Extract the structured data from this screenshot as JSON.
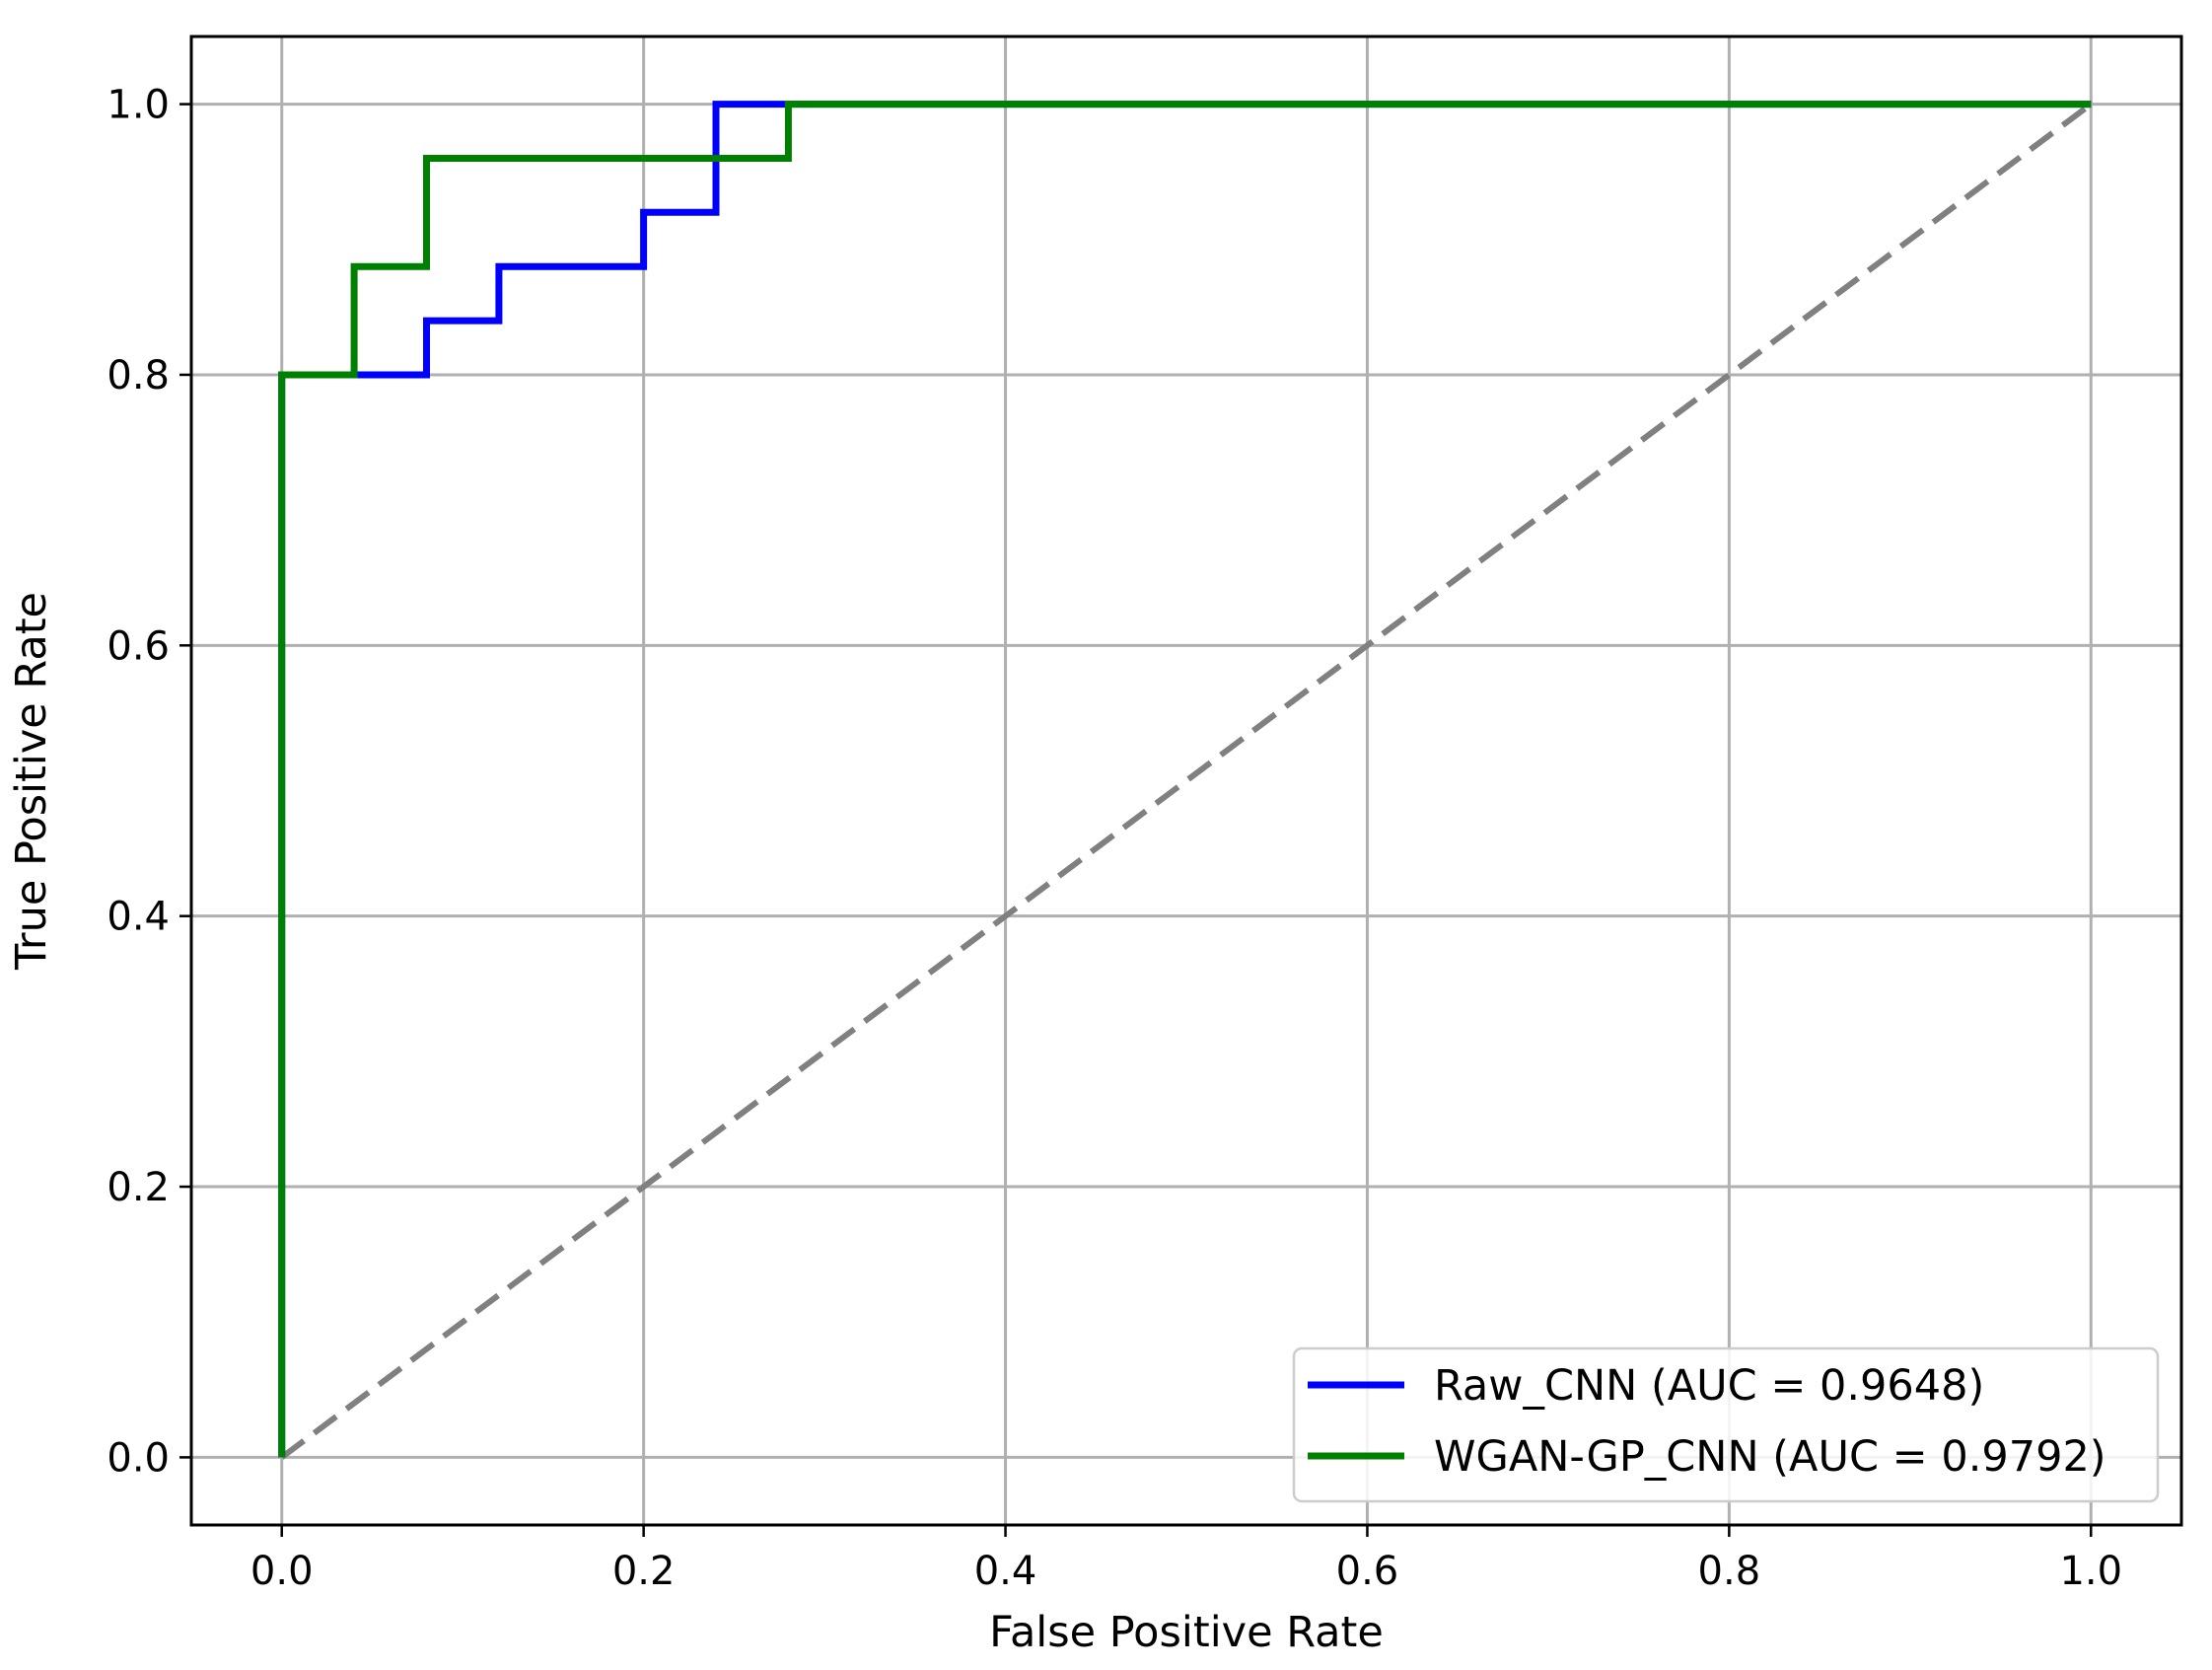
{
  "chart_data": {
    "type": "line",
    "title": "",
    "xlabel": "False Positive Rate",
    "ylabel": "True Positive Rate",
    "xlim": [
      -0.05,
      1.05
    ],
    "ylim": [
      -0.05,
      1.05
    ],
    "xticks": [
      0.0,
      0.2,
      0.4,
      0.6,
      0.8,
      1.0
    ],
    "yticks": [
      0.0,
      0.2,
      0.4,
      0.6,
      0.8,
      1.0
    ],
    "xtick_labels": [
      "0.0",
      "0.2",
      "0.4",
      "0.6",
      "0.8",
      "1.0"
    ],
    "ytick_labels": [
      "0.0",
      "0.2",
      "0.4",
      "0.6",
      "0.8",
      "1.0"
    ],
    "grid": true,
    "legend_position": "lower-right",
    "series": [
      {
        "name": "Raw_CNN (AUC = 0.9648)",
        "color": "#0000ff",
        "style": "solid",
        "x": [
          0.0,
          0.0,
          0.08,
          0.08,
          0.12,
          0.12,
          0.2,
          0.2,
          0.24,
          0.24,
          1.0
        ],
        "y": [
          0.0,
          0.8,
          0.8,
          0.84,
          0.84,
          0.88,
          0.88,
          0.92,
          0.92,
          1.0,
          1.0
        ]
      },
      {
        "name": "WGAN-GP_CNN (AUC = 0.9792)",
        "color": "#008000",
        "style": "solid",
        "x": [
          0.0,
          0.0,
          0.04,
          0.04,
          0.08,
          0.08,
          0.28,
          0.28,
          1.0
        ],
        "y": [
          0.0,
          0.8,
          0.8,
          0.88,
          0.88,
          0.96,
          0.96,
          1.0,
          1.0
        ]
      },
      {
        "name": "",
        "color": "#808080",
        "style": "dashed",
        "x": [
          0.0,
          1.0
        ],
        "y": [
          0.0,
          1.0
        ]
      }
    ]
  }
}
